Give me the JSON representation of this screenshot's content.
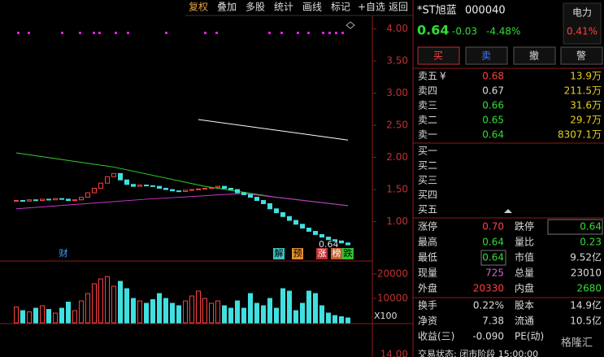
{
  "toolbar": [
    "复权",
    "叠加",
    "多股",
    "统计",
    "画线",
    "标记",
    "+自选",
    "返回"
  ],
  "price_chart": {
    "ylim": [
      0.4,
      4.45
    ],
    "yticks": [
      {
        "value": 4,
        "label": "4.00"
      },
      {
        "value": 3.5,
        "label": "3.50"
      },
      {
        "value": 3,
        "label": "3.00"
      },
      {
        "value": 2.5,
        "label": "2.50"
      },
      {
        "value": 2,
        "label": "2.00"
      },
      {
        "value": 1.5,
        "label": "1.50"
      },
      {
        "value": 1,
        "label": "1.00"
      }
    ],
    "candles": {
      "open": [
        1.32,
        1.33,
        1.32,
        1.34,
        1.33,
        1.35,
        1.34,
        1.36,
        1.35,
        1.33,
        1.34,
        1.38,
        1.45,
        1.52,
        1.6,
        1.7,
        1.75,
        1.65,
        1.58,
        1.55,
        1.57,
        1.56,
        1.55,
        1.52,
        1.5,
        1.48,
        1.47,
        1.49,
        1.5,
        1.51,
        1.52,
        1.53,
        1.55,
        1.52,
        1.5,
        1.45,
        1.42,
        1.38,
        1.33,
        1.28,
        1.2,
        1.14,
        1.08,
        1.02,
        0.96,
        0.9,
        0.85,
        0.8,
        0.76,
        0.72,
        0.7,
        0.67
      ],
      "close": [
        1.33,
        1.32,
        1.34,
        1.33,
        1.35,
        1.34,
        1.36,
        1.35,
        1.33,
        1.34,
        1.38,
        1.45,
        1.52,
        1.6,
        1.7,
        1.75,
        1.65,
        1.58,
        1.55,
        1.57,
        1.56,
        1.55,
        1.52,
        1.5,
        1.48,
        1.47,
        1.49,
        1.5,
        1.51,
        1.52,
        1.53,
        1.55,
        1.52,
        1.5,
        1.45,
        1.42,
        1.38,
        1.33,
        1.28,
        1.2,
        1.14,
        1.08,
        1.02,
        0.96,
        0.9,
        0.85,
        0.8,
        0.76,
        0.72,
        0.7,
        0.67,
        0.64
      ]
    },
    "ma_lines": [
      {
        "color": "#ffffff",
        "x": [
          28,
          51
        ],
        "values": [
          2.59,
          2.27
        ]
      },
      {
        "color": "#33cc33",
        "x": [
          0,
          15,
          29,
          40,
          51
        ],
        "values": [
          2.07,
          1.85,
          1.55,
          1.38,
          1.25
        ]
      },
      {
        "color": "#cc33cc",
        "x": [
          0,
          20,
          35,
          51
        ],
        "values": [
          1.2,
          1.35,
          1.44,
          1.25
        ]
      }
    ],
    "last_price_label": "0.64",
    "annotations": [
      "财",
      "解",
      "预",
      "涨",
      "榜",
      "跌"
    ]
  },
  "volume_chart": {
    "ylim": [
      0,
      24000
    ],
    "yticks": [
      20000,
      10000
    ],
    "unit": "X100",
    "values": [
      6500,
      5000,
      4500,
      6000,
      7000,
      5500,
      4000,
      6000,
      8500,
      5000,
      9000,
      12000,
      16000,
      18000,
      19000,
      15000,
      17000,
      14000,
      10000,
      9000,
      8000,
      9500,
      12000,
      10000,
      8000,
      7000,
      9000,
      11000,
      13000,
      10000,
      8000,
      9000,
      7000,
      6000,
      9000,
      6000,
      12000,
      8000,
      7000,
      10000,
      6000,
      14000,
      13000,
      5000,
      8000,
      13000,
      12000,
      7000,
      4000,
      3000,
      2500,
      2000
    ],
    "next_axis_label": "14.00"
  },
  "quote": {
    "name": "*ST旭蓝",
    "code": "000040",
    "sector": "电力",
    "sector_pct": "0.41%",
    "price": "0.64",
    "change": "-0.03",
    "pct": "-4.48%",
    "buttons": [
      "买",
      "卖",
      "撤",
      "警"
    ],
    "currency": "¥",
    "asks": [
      {
        "label": "卖五",
        "price": "0.68",
        "color": "#ff4040",
        "volume": "13.9万"
      },
      {
        "label": "卖四",
        "price": "0.67",
        "color": "#dddddd",
        "volume": "211.5万"
      },
      {
        "label": "卖三",
        "price": "0.66",
        "color": "#33dd33",
        "volume": "31.6万"
      },
      {
        "label": "卖二",
        "price": "0.65",
        "color": "#33dd33",
        "volume": "29.7万"
      },
      {
        "label": "卖一",
        "price": "0.64",
        "color": "#33dd33",
        "volume": "8307.1万"
      }
    ],
    "bids": [
      "买一",
      "买二",
      "买三",
      "买四",
      "买五"
    ],
    "stats": [
      [
        {
          "label": "涨停",
          "value": "0.70",
          "color": "#ff4040"
        },
        {
          "label": "跌停",
          "value": "0.64",
          "color": "#33dd33"
        }
      ],
      [
        {
          "label": "最高",
          "value": "0.64",
          "color": "#33dd33"
        },
        {
          "label": "量比",
          "value": "0.23",
          "color": "#33dd33"
        }
      ],
      [
        {
          "label": "最低",
          "value": "0.64",
          "color": "#33dd33"
        },
        {
          "label": "市值",
          "value": "9.52亿",
          "color": "#dddddd"
        }
      ],
      [
        {
          "label": "现量",
          "value": "725",
          "color": "#cc66cc"
        },
        {
          "label": "总量",
          "value": "23010",
          "color": "#dddddd"
        }
      ],
      [
        {
          "label": "外盘",
          "value": "20330",
          "color": "#ff4040"
        },
        {
          "label": "内盘",
          "value": "2680",
          "color": "#33dd33"
        }
      ],
      [
        {
          "label": "换手",
          "value": "0.22%",
          "color": "#dddddd"
        },
        {
          "label": "股本",
          "value": "14.9亿",
          "color": "#dddddd"
        }
      ],
      [
        {
          "label": "净资",
          "value": "7.38",
          "color": "#dddddd"
        },
        {
          "label": "流通",
          "value": "10.5亿",
          "color": "#dddddd"
        }
      ],
      [
        {
          "label": "收益(三)",
          "value": "-0.090",
          "color": "#dddddd"
        },
        {
          "label": "PE(动)",
          "value": "",
          "color": "#dddddd"
        }
      ]
    ],
    "status": "交易状态: 闭市阶段 15:00:00",
    "watermark": "格隆汇"
  }
}
